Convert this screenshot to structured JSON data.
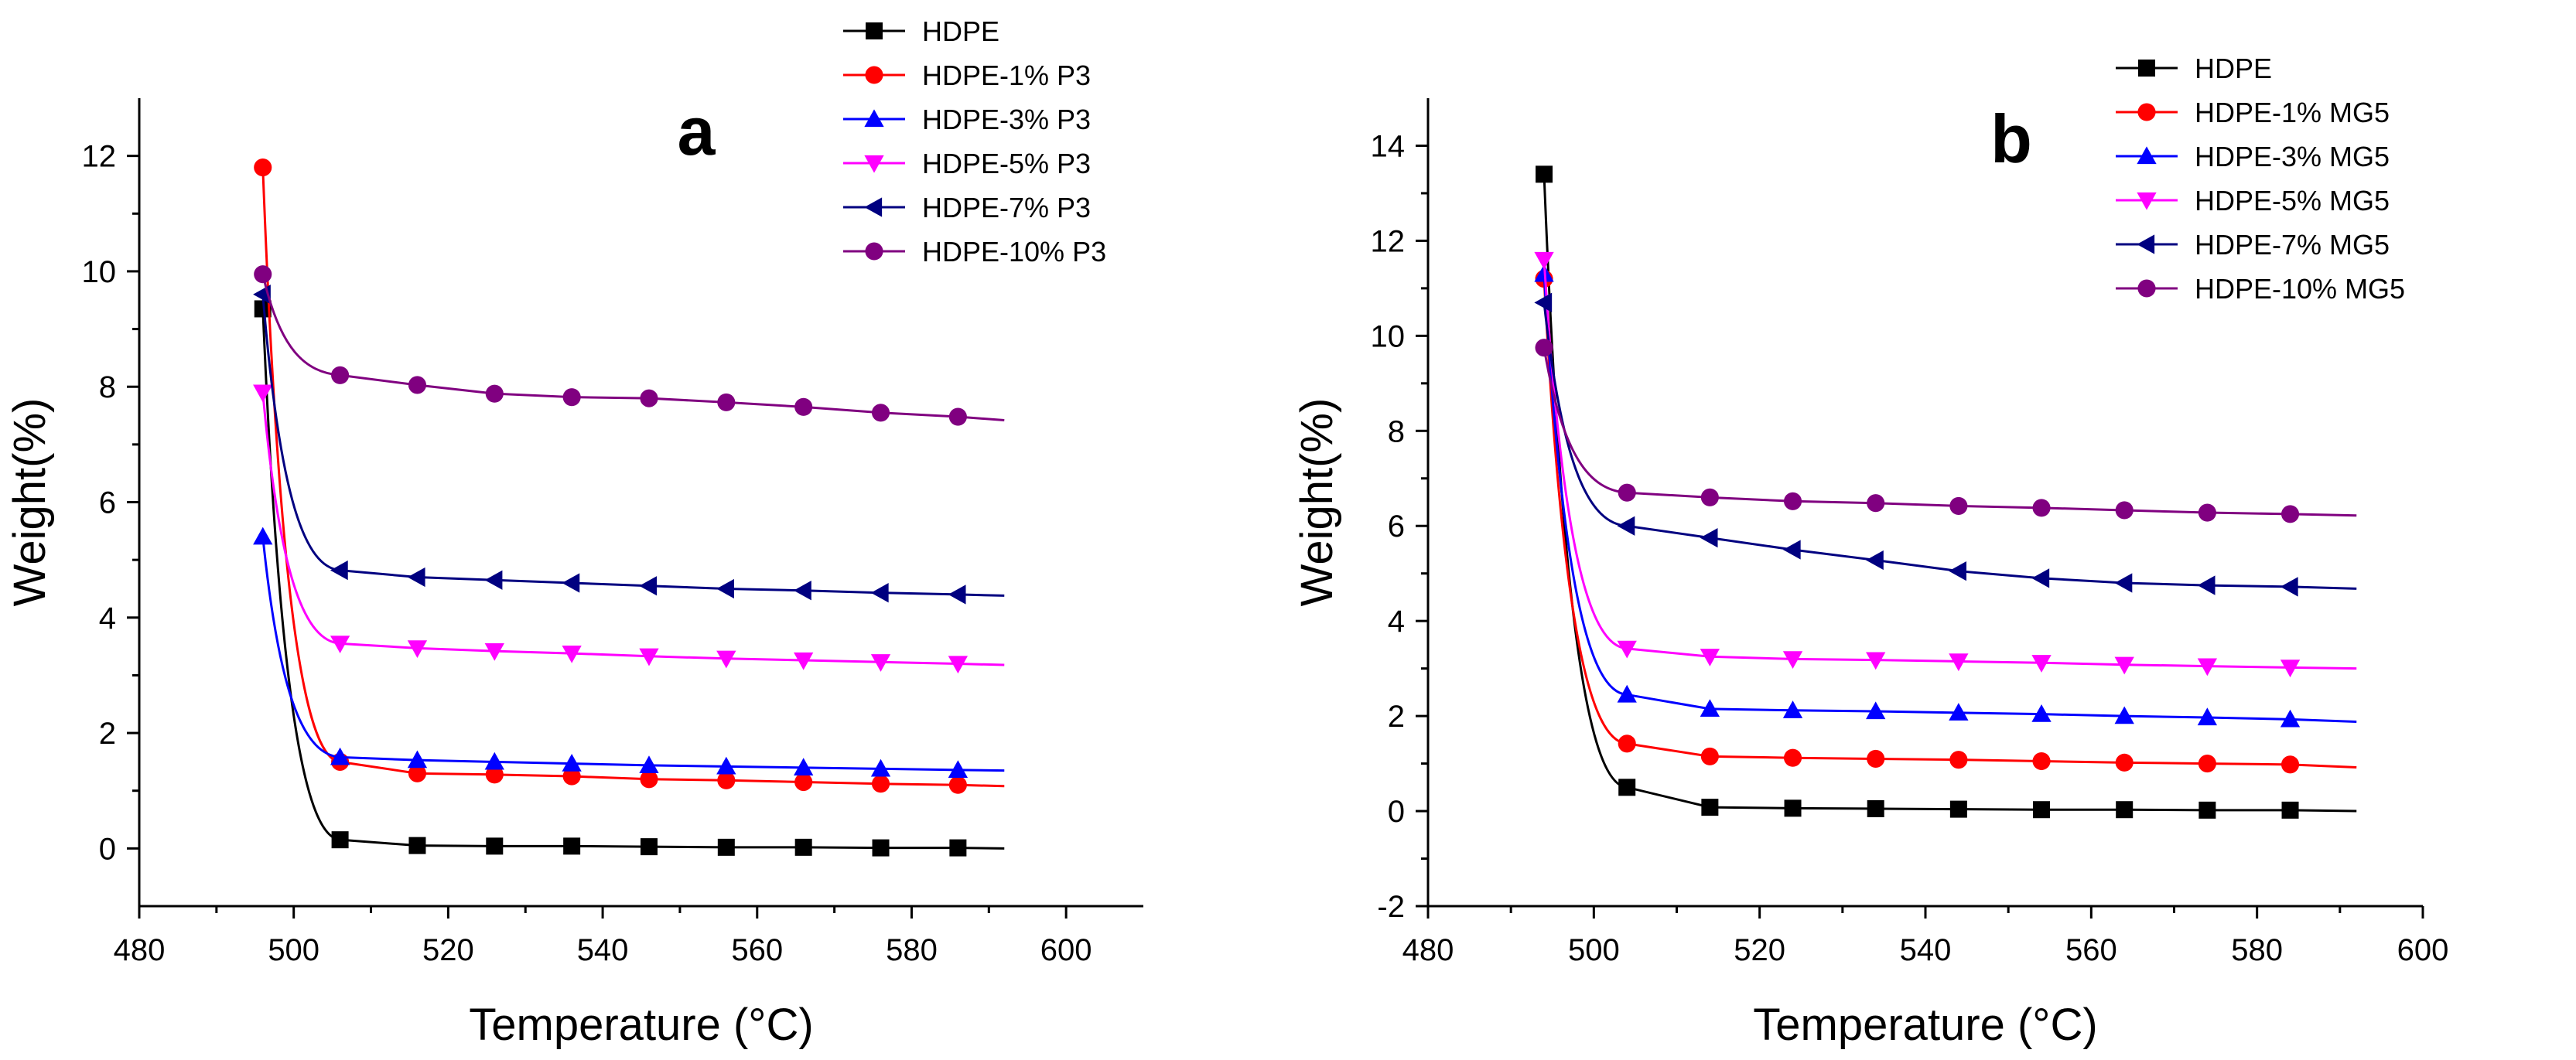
{
  "chart_data": [
    {
      "type": "line",
      "panel_label": "a",
      "xlabel": "Temperature (°C)",
      "ylabel": "Weight(%)",
      "xlim": [
        480,
        610
      ],
      "ylim": [
        -1,
        13
      ],
      "xticks": [
        480,
        500,
        520,
        540,
        560,
        580,
        600
      ],
      "yticks": [
        0,
        2,
        4,
        6,
        8,
        10,
        12
      ],
      "legend_position": "top-right-outside",
      "grid": false,
      "series": [
        {
          "name": "HDPE",
          "color": "#000000",
          "marker": "square",
          "x": [
            496,
            506,
            516,
            526,
            536,
            546,
            556,
            566,
            576,
            586
          ],
          "y": [
            9.35,
            0.15,
            0.05,
            0.04,
            0.04,
            0.03,
            0.02,
            0.02,
            0.01,
            0.01
          ],
          "end": [
            592,
            0.0
          ]
        },
        {
          "name": "HDPE-1% P3",
          "color": "#ff0000",
          "marker": "circle",
          "x": [
            496,
            506,
            516,
            526,
            536,
            546,
            556,
            566,
            576,
            586
          ],
          "y": [
            11.8,
            1.5,
            1.3,
            1.28,
            1.25,
            1.2,
            1.18,
            1.15,
            1.12,
            1.1
          ],
          "end": [
            592,
            1.08
          ]
        },
        {
          "name": "HDPE-3% P3",
          "color": "#0000ff",
          "marker": "triangle-up",
          "x": [
            496,
            506,
            516,
            526,
            536,
            546,
            556,
            566,
            576,
            586
          ],
          "y": [
            5.4,
            1.58,
            1.53,
            1.5,
            1.47,
            1.44,
            1.42,
            1.4,
            1.38,
            1.36
          ],
          "end": [
            592,
            1.35
          ]
        },
        {
          "name": "HDPE-5% P3",
          "color": "#ff00ff",
          "marker": "triangle-down",
          "x": [
            496,
            506,
            516,
            526,
            536,
            546,
            556,
            566,
            576,
            586
          ],
          "y": [
            7.9,
            3.55,
            3.47,
            3.42,
            3.38,
            3.33,
            3.29,
            3.26,
            3.23,
            3.2
          ],
          "end": [
            592,
            3.18
          ]
        },
        {
          "name": "HDPE-7% P3",
          "color": "#000080",
          "marker": "triangle-left",
          "x": [
            496,
            506,
            516,
            526,
            536,
            546,
            556,
            566,
            576,
            586
          ],
          "y": [
            9.6,
            4.82,
            4.7,
            4.65,
            4.6,
            4.55,
            4.5,
            4.47,
            4.43,
            4.4
          ],
          "end": [
            592,
            4.38
          ]
        },
        {
          "name": "HDPE-10% P3",
          "color": "#800080",
          "marker": "circle",
          "x": [
            496,
            506,
            516,
            526,
            536,
            546,
            556,
            566,
            576,
            586
          ],
          "y": [
            9.95,
            8.2,
            8.03,
            7.88,
            7.82,
            7.8,
            7.73,
            7.65,
            7.55,
            7.48
          ],
          "end": [
            592,
            7.42
          ]
        }
      ]
    },
    {
      "type": "line",
      "panel_label": "b",
      "xlabel": "Temperature (°C)",
      "ylabel": "Weight(%)",
      "xlim": [
        480,
        600
      ],
      "ylim": [
        -2,
        15
      ],
      "xticks": [
        480,
        500,
        520,
        540,
        560,
        580,
        600
      ],
      "yticks": [
        -2,
        0,
        2,
        4,
        6,
        8,
        10,
        12,
        14
      ],
      "legend_position": "top-right-outside",
      "grid": false,
      "series": [
        {
          "name": "HDPE",
          "color": "#000000",
          "marker": "square",
          "x": [
            494,
            504,
            514,
            524,
            534,
            544,
            554,
            564,
            574,
            584
          ],
          "y": [
            13.4,
            0.5,
            0.08,
            0.06,
            0.05,
            0.04,
            0.03,
            0.03,
            0.02,
            0.02
          ],
          "end": [
            592,
            0.0
          ]
        },
        {
          "name": "HDPE-1% MG5",
          "color": "#ff0000",
          "marker": "circle",
          "x": [
            494,
            504,
            514,
            524,
            534,
            544,
            554,
            564,
            574,
            584
          ],
          "y": [
            11.2,
            1.42,
            1.15,
            1.12,
            1.1,
            1.08,
            1.05,
            1.02,
            1.0,
            0.98
          ],
          "end": [
            592,
            0.92
          ]
        },
        {
          "name": "HDPE-3% MG5",
          "color": "#0000ff",
          "marker": "triangle-up",
          "x": [
            494,
            504,
            514,
            524,
            534,
            544,
            554,
            564,
            574,
            584
          ],
          "y": [
            11.3,
            2.45,
            2.15,
            2.12,
            2.1,
            2.07,
            2.04,
            2.0,
            1.97,
            1.93
          ],
          "end": [
            592,
            1.88
          ]
        },
        {
          "name": "HDPE-5% MG5",
          "color": "#ff00ff",
          "marker": "triangle-down",
          "x": [
            494,
            504,
            514,
            524,
            534,
            544,
            554,
            564,
            574,
            584
          ],
          "y": [
            11.6,
            3.42,
            3.25,
            3.2,
            3.18,
            3.15,
            3.12,
            3.08,
            3.05,
            3.02
          ],
          "end": [
            592,
            3.0
          ]
        },
        {
          "name": "HDPE-7% MG5",
          "color": "#000080",
          "marker": "triangle-left",
          "x": [
            494,
            504,
            514,
            524,
            534,
            544,
            554,
            564,
            574,
            584
          ],
          "y": [
            10.7,
            6.0,
            5.75,
            5.5,
            5.28,
            5.05,
            4.9,
            4.8,
            4.75,
            4.72
          ],
          "end": [
            592,
            4.68
          ]
        },
        {
          "name": "HDPE-10% MG5",
          "color": "#800080",
          "marker": "circle",
          "x": [
            494,
            504,
            514,
            524,
            534,
            544,
            554,
            564,
            574,
            584
          ],
          "y": [
            9.75,
            6.7,
            6.6,
            6.52,
            6.48,
            6.42,
            6.38,
            6.33,
            6.28,
            6.25
          ],
          "end": [
            592,
            6.22
          ]
        }
      ]
    }
  ]
}
